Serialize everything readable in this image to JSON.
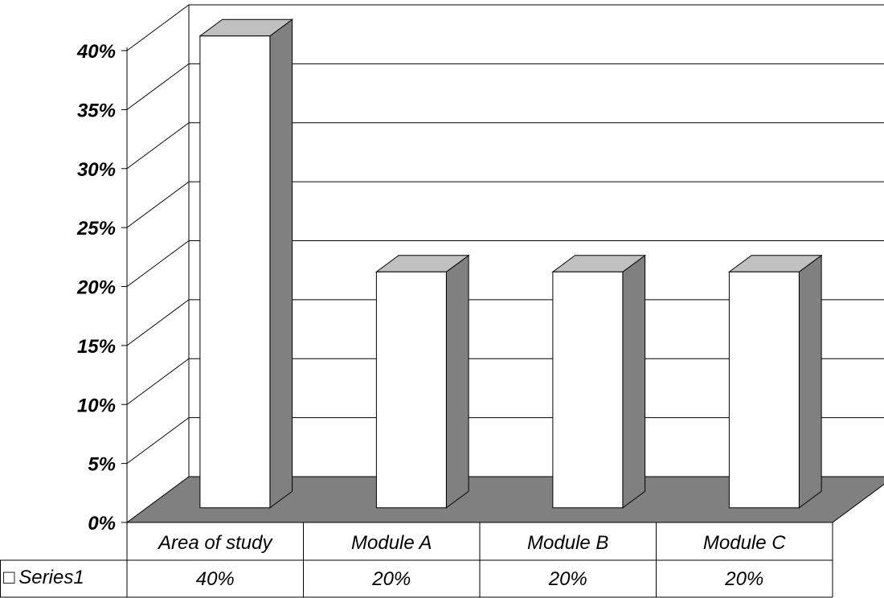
{
  "chart_data": {
    "type": "bar",
    "categories": [
      "Area of study",
      "Module A",
      "Module B",
      "Module C"
    ],
    "series": [
      {
        "name": "Series1",
        "values": [
          0.4,
          0.2,
          0.2,
          0.2
        ]
      }
    ],
    "data_labels": [
      "40%",
      "20%",
      "20%",
      "20%"
    ],
    "y_ticks": [
      "0%",
      "5%",
      "10%",
      "15%",
      "20%",
      "25%",
      "30%",
      "35%",
      "40%"
    ],
    "ylim": [
      0,
      0.4
    ],
    "grid": true,
    "three_d": true,
    "legend": "data-table",
    "legend_symbol": "□",
    "colors": {
      "bar_front": "#ffffff",
      "bar_side": "#808080",
      "bar_top": "#c0c0c0",
      "floor": "#808080",
      "line": "#000000"
    }
  }
}
